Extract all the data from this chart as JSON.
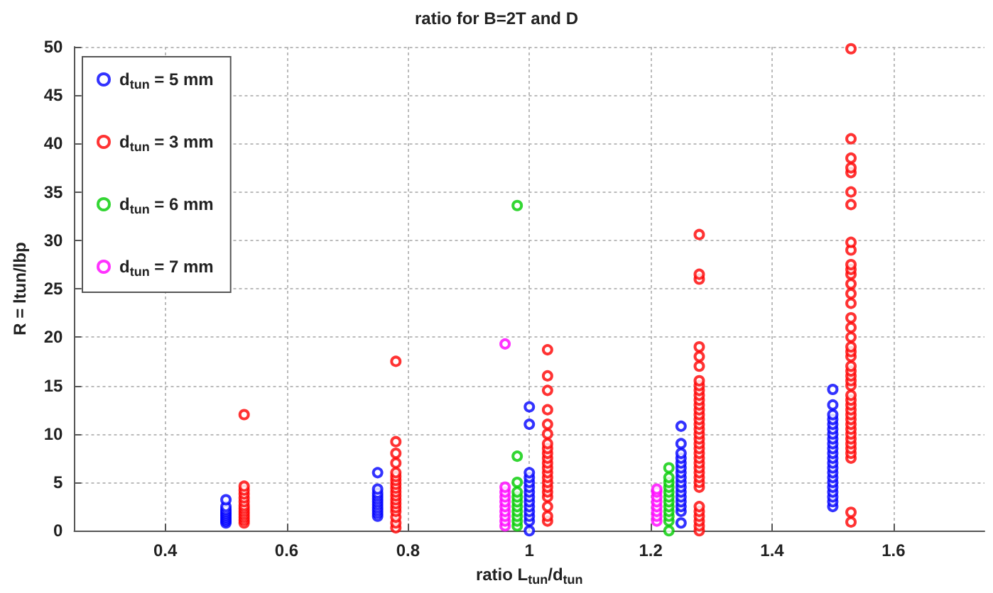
{
  "chart_data": {
    "type": "scatter",
    "title": "ratio for B=2T and D",
    "xlabel": "ratio L$_{tun}$/d$_{tun}$",
    "ylabel": "R = ltun/lbp",
    "xlim": [
      0.25,
      1.75
    ],
    "xticks": [
      0.4,
      0.6,
      0.8,
      1,
      1.2,
      1.4,
      1.6
    ],
    "ylim": [
      0,
      50
    ],
    "yticks": [
      0,
      5,
      10,
      15,
      20,
      25,
      30,
      35,
      40,
      45,
      50
    ],
    "grid": true,
    "legend": "top left",
    "marker": "circle",
    "series": [
      {
        "name": "d$_{tun}$ = 5 mm",
        "color": "#0000ff",
        "x": [
          0.5,
          0.5,
          0.5,
          0.5,
          0.5,
          0.5,
          0.5,
          0.5,
          0.5,
          0.5,
          0.75,
          0.75,
          0.75,
          0.75,
          0.75,
          0.75,
          0.75,
          0.75,
          0.75,
          0.75,
          0.75,
          1,
          1,
          1,
          1,
          1,
          1,
          1,
          1,
          1,
          1,
          1,
          1,
          1,
          1,
          1.25,
          1.25,
          1.25,
          1.25,
          1.25,
          1.25,
          1.25,
          1.25,
          1.25,
          1.25,
          1.25,
          1.25,
          1.25,
          1.25,
          1.25,
          1.25,
          1.5,
          1.5,
          1.5,
          1.5,
          1.5,
          1.5,
          1.5,
          1.5,
          1.5,
          1.5,
          1.5,
          1.5,
          1.5,
          1.5,
          1.5,
          1.5,
          1.5,
          1.5,
          1.5,
          1.5,
          1.5,
          1.5
        ],
        "values": [
          0.8,
          1.0,
          1.2,
          1.4,
          1.6,
          1.8,
          2.0,
          2.2,
          2.5,
          3.2,
          1.5,
          1.8,
          2.1,
          2.4,
          2.7,
          3.0,
          3.3,
          3.6,
          3.9,
          4.3,
          6.0,
          0,
          1.0,
          1.5,
          2.0,
          2.5,
          3.0,
          3.5,
          4.0,
          4.5,
          5.0,
          5.5,
          6.0,
          11.0,
          12.8,
          0.8,
          2.0,
          2.5,
          3.0,
          3.5,
          4.0,
          4.5,
          5.0,
          5.5,
          6.0,
          6.5,
          7.0,
          7.5,
          8.0,
          9.0,
          10.8,
          2.5,
          3.0,
          3.5,
          4.0,
          4.5,
          5.0,
          5.5,
          6.0,
          6.5,
          7.0,
          7.5,
          8.0,
          8.5,
          9.0,
          9.5,
          10.0,
          10.5,
          11.0,
          11.5,
          12.0,
          13.0,
          14.6
        ]
      },
      {
        "name": "d$_{tun}$ = 3 mm",
        "color": "#ff0000",
        "x": [
          0.53,
          0.53,
          0.53,
          0.53,
          0.53,
          0.53,
          0.53,
          0.53,
          0.53,
          0.53,
          0.53,
          0.53,
          0.53,
          0.78,
          0.78,
          0.78,
          0.78,
          0.78,
          0.78,
          0.78,
          0.78,
          0.78,
          0.78,
          0.78,
          0.78,
          0.78,
          0.78,
          0.78,
          0.78,
          0.78,
          0.78,
          1.03,
          1.03,
          1.03,
          1.03,
          1.03,
          1.03,
          1.03,
          1.03,
          1.03,
          1.03,
          1.03,
          1.03,
          1.03,
          1.03,
          1.03,
          1.03,
          1.03,
          1.03,
          1.03,
          1.03,
          1.03,
          1.28,
          1.28,
          1.28,
          1.28,
          1.28,
          1.28,
          1.28,
          1.28,
          1.28,
          1.28,
          1.28,
          1.28,
          1.28,
          1.28,
          1.28,
          1.28,
          1.28,
          1.28,
          1.28,
          1.28,
          1.28,
          1.28,
          1.28,
          1.28,
          1.28,
          1.28,
          1.28,
          1.28,
          1.28,
          1.28,
          1.28,
          1.28,
          1.28,
          1.28,
          1.28,
          1.53,
          1.53,
          1.53,
          1.53,
          1.53,
          1.53,
          1.53,
          1.53,
          1.53,
          1.53,
          1.53,
          1.53,
          1.53,
          1.53,
          1.53,
          1.53,
          1.53,
          1.53,
          1.53,
          1.53,
          1.53,
          1.53,
          1.53,
          1.53,
          1.53,
          1.53,
          1.53,
          1.53,
          1.53,
          1.53,
          1.53,
          1.53,
          1.53,
          1.53,
          1.53,
          1.53,
          1.53,
          1.53,
          1.53,
          1.53,
          1.53,
          1.53
        ],
        "values": [
          0.8,
          1.1,
          1.4,
          1.7,
          2.0,
          2.3,
          2.6,
          3.0,
          3.4,
          3.8,
          4.2,
          4.6,
          12.0,
          0.3,
          0.8,
          1.4,
          2.0,
          2.4,
          2.8,
          3.2,
          3.6,
          4.0,
          4.4,
          4.8,
          5.2,
          5.6,
          6.0,
          7.0,
          8.0,
          9.2,
          17.5,
          1.0,
          1.5,
          2.5,
          3.5,
          4.0,
          4.5,
          5.0,
          5.5,
          6.0,
          6.5,
          7.0,
          7.5,
          8.0,
          8.5,
          9.0,
          10.0,
          11.0,
          12.5,
          14.5,
          16.0,
          18.7,
          0,
          0.5,
          1.0,
          1.5,
          2.0,
          2.5,
          4.5,
          5.0,
          5.5,
          6.0,
          6.5,
          7.0,
          7.5,
          8.0,
          8.5,
          9.0,
          9.5,
          10.0,
          10.5,
          11.0,
          11.5,
          12.0,
          12.5,
          13.0,
          13.5,
          14.0,
          14.5,
          15.0,
          15.5,
          17.0,
          18.0,
          19.0,
          26.0,
          26.5,
          30.6,
          0.9,
          1.9,
          7.5,
          8.0,
          8.5,
          9.0,
          9.5,
          10.0,
          10.5,
          11.0,
          11.5,
          12.0,
          12.5,
          13.0,
          13.5,
          14.0,
          15.0,
          15.5,
          16.0,
          16.5,
          17.0,
          18.0,
          18.5,
          19.0,
          20.0,
          21.0,
          22.0,
          23.5,
          24.5,
          25.5,
          26.5,
          27.0,
          27.5,
          29.0,
          29.8,
          33.7,
          35.0,
          37.0,
          37.5,
          38.5,
          40.5,
          49.8
        ]
      },
      {
        "name": "d$_{tun}$ = 6 mm",
        "color": "#00cc00",
        "x": [
          0.98,
          0.98,
          0.98,
          0.98,
          0.98,
          0.98,
          0.98,
          0.98,
          0.98,
          0.98,
          0.98,
          1.23,
          1.23,
          1.23,
          1.23,
          1.23,
          1.23,
          1.23,
          1.23,
          1.23,
          1.23,
          1.23,
          1.23
        ],
        "values": [
          0.5,
          1.0,
          1.5,
          2.0,
          2.5,
          3.0,
          3.5,
          4.0,
          5.0,
          7.7,
          33.6,
          0,
          1.0,
          1.5,
          2.0,
          2.5,
          3.0,
          3.5,
          4.0,
          4.5,
          5.0,
          5.5,
          6.5
        ]
      },
      {
        "name": "d$_{tun}$ = 7 mm",
        "color": "#ff00ff",
        "x": [
          0.96,
          0.96,
          0.96,
          0.96,
          0.96,
          0.96,
          0.96,
          0.96,
          0.96,
          0.96,
          1.21,
          1.21,
          1.21,
          1.21,
          1.21,
          1.21,
          1.21,
          1.21
        ],
        "values": [
          0.5,
          1.0,
          1.5,
          2.0,
          2.5,
          3.0,
          3.5,
          4.0,
          4.5,
          19.3,
          1.0,
          1.5,
          2.0,
          2.5,
          3.0,
          3.5,
          4.0,
          4.3
        ]
      }
    ]
  }
}
